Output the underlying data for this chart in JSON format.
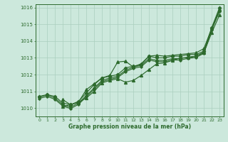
{
  "title": "Graphe pression niveau de la mer (hPa)",
  "xlabel_ticks": [
    0,
    1,
    2,
    3,
    4,
    5,
    6,
    7,
    8,
    9,
    10,
    11,
    12,
    13,
    14,
    15,
    16,
    17,
    18,
    19,
    20,
    21,
    22,
    23
  ],
  "ylim": [
    1009.5,
    1016.2
  ],
  "xlim": [
    -0.5,
    23.5
  ],
  "yticks": [
    1010,
    1011,
    1012,
    1013,
    1014,
    1015,
    1016
  ],
  "bg_color": "#cce8dc",
  "line_color": "#2d6a2d",
  "grid_color": "#aacfbe",
  "series1": {
    "x": [
      0,
      1,
      2,
      3,
      4,
      5,
      6,
      7,
      8,
      9,
      10,
      11,
      12,
      13,
      14,
      15,
      16,
      17,
      18,
      19,
      20,
      21,
      22,
      23
    ],
    "y": [
      1010.7,
      1010.8,
      1010.7,
      1010.3,
      1010.2,
      1010.4,
      1010.9,
      1011.4,
      1011.8,
      1011.9,
      1012.0,
      1012.4,
      1012.5,
      1012.6,
      1013.1,
      1013.0,
      1013.0,
      1013.1,
      1013.1,
      1013.2,
      1013.2,
      1013.4,
      1014.8,
      1016.0
    ],
    "marker": "D",
    "markersize": 2.2
  },
  "series2": {
    "x": [
      0,
      1,
      2,
      3,
      4,
      5,
      6,
      7,
      8,
      9,
      10,
      11,
      12,
      13,
      14,
      15,
      16,
      17,
      18,
      19,
      20,
      21,
      22,
      23
    ],
    "y": [
      1010.65,
      1010.78,
      1010.6,
      1010.2,
      1010.05,
      1010.3,
      1010.75,
      1011.2,
      1011.65,
      1011.8,
      1011.9,
      1012.25,
      1012.45,
      1012.55,
      1012.95,
      1012.85,
      1012.85,
      1012.95,
      1012.95,
      1013.05,
      1013.1,
      1013.35,
      1014.75,
      1015.85
    ],
    "marker": "D",
    "markersize": 1.8
  },
  "series3": {
    "x": [
      0,
      1,
      2,
      3,
      4,
      5,
      6,
      7,
      8,
      9,
      10,
      11,
      12,
      13,
      14,
      15,
      16,
      17,
      18,
      19,
      20,
      21,
      22,
      23
    ],
    "y": [
      1010.65,
      1010.78,
      1010.6,
      1010.2,
      1010.05,
      1010.3,
      1010.75,
      1011.2,
      1011.65,
      1011.8,
      1011.9,
      1012.25,
      1012.45,
      1012.55,
      1012.95,
      1012.85,
      1012.85,
      1012.95,
      1012.95,
      1013.05,
      1013.1,
      1013.35,
      1014.75,
      1015.85
    ],
    "marker": "D",
    "markersize": 1.8
  },
  "series4_upper": {
    "x": [
      3,
      4,
      5,
      6,
      7,
      8,
      9,
      10,
      11,
      12,
      13,
      14,
      15,
      16,
      17,
      18,
      19,
      20,
      21,
      22,
      23
    ],
    "y": [
      1010.5,
      1010.2,
      1010.35,
      1011.1,
      1011.45,
      1011.8,
      1011.95,
      1012.75,
      1012.8,
      1012.45,
      1012.65,
      1013.1,
      1013.15,
      1013.1,
      1013.15,
      1013.2,
      1013.25,
      1013.3,
      1013.55,
      1014.75,
      1015.85
    ],
    "marker": "^",
    "markersize": 2.8
  },
  "series5_low": {
    "x": [
      3,
      4,
      5,
      6,
      7,
      8,
      9,
      10,
      11,
      12,
      13,
      14,
      15,
      16,
      17,
      18,
      19,
      20,
      21,
      22,
      23
    ],
    "y": [
      1010.1,
      1010.2,
      1010.35,
      1010.6,
      1011.0,
      1011.5,
      1011.65,
      1011.75,
      1011.55,
      1011.65,
      1011.95,
      1012.3,
      1012.65,
      1012.7,
      1012.85,
      1013.0,
      1013.0,
      1013.1,
      1013.3,
      1014.5,
      1015.55
    ],
    "marker": "^",
    "markersize": 2.8
  }
}
